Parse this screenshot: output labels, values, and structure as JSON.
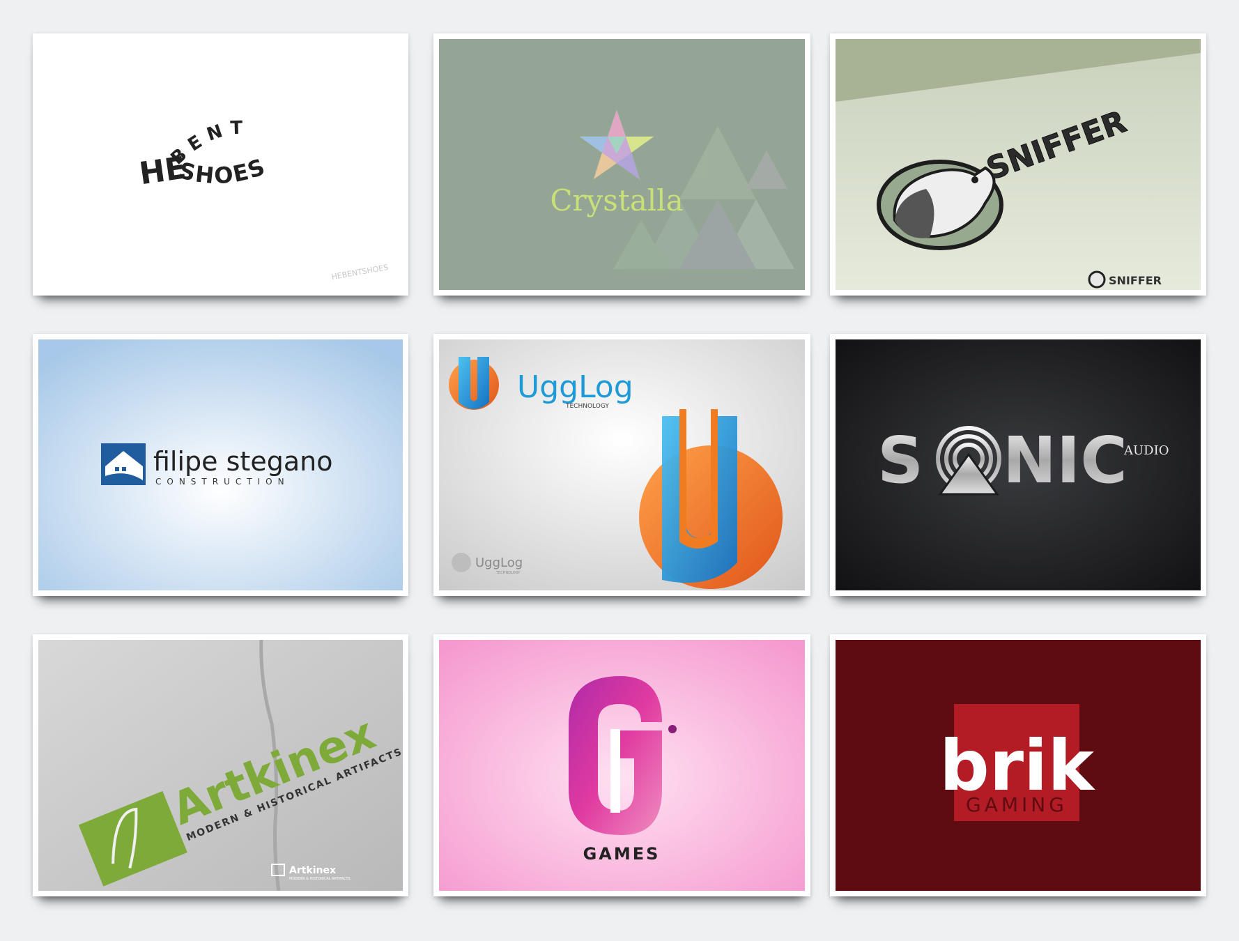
{
  "cards": [
    {
      "name": "Hebent Shoes",
      "wordmark": "HE",
      "arc_top": "BENT",
      "arc_bottom": "SHOES",
      "watermark": "HEBENTSHOES"
    },
    {
      "name": "Crystalla",
      "wordmark": "Crystalla"
    },
    {
      "name": "Sniffer",
      "wordmark": "SNIFFER",
      "watermark": "SNIFFER"
    },
    {
      "name": "filipe stegano",
      "wordmark": "filipe stegano",
      "tagline": "CONSTRUCTION"
    },
    {
      "name": "UggLog",
      "wordmark": "UggLog",
      "tagline": "TECHNOLOGY",
      "watermark": "UggLog",
      "watermark_tagline": "TECHNOLOGY"
    },
    {
      "name": "SONIC",
      "wordmark_left": "S",
      "wordmark_right": "NIC",
      "tagline": "AUDIO"
    },
    {
      "name": "Artkinex",
      "wordmark": "Artkinex",
      "tagline": "MODERN & HISTORICAL ARTIFACTS",
      "watermark": "Artkinex",
      "watermark_tagline": "MODERN & HISTORICAL ARTIFACTS"
    },
    {
      "name": "G Games",
      "wordmark": "GAMES"
    },
    {
      "name": "brik",
      "wordmark": "brik",
      "tagline": "GAMING"
    }
  ],
  "colors": {
    "page_bg": "#eef0f2",
    "crystalla_bg": "#94a595",
    "crystalla_text": "#c9e07a",
    "sniffer_bg": "#dde3d2",
    "filipe_blue": "#1f5d9e",
    "ugglog_blue": "#1e9ad6",
    "ugglog_orange": "#f07b21",
    "sonic_bg": "#1c1d1f",
    "artkinex_green": "#7eaa3a",
    "games_pink": "#f59ad0",
    "brik_bg": "#5e0c12",
    "brik_red": "#b31c24"
  }
}
